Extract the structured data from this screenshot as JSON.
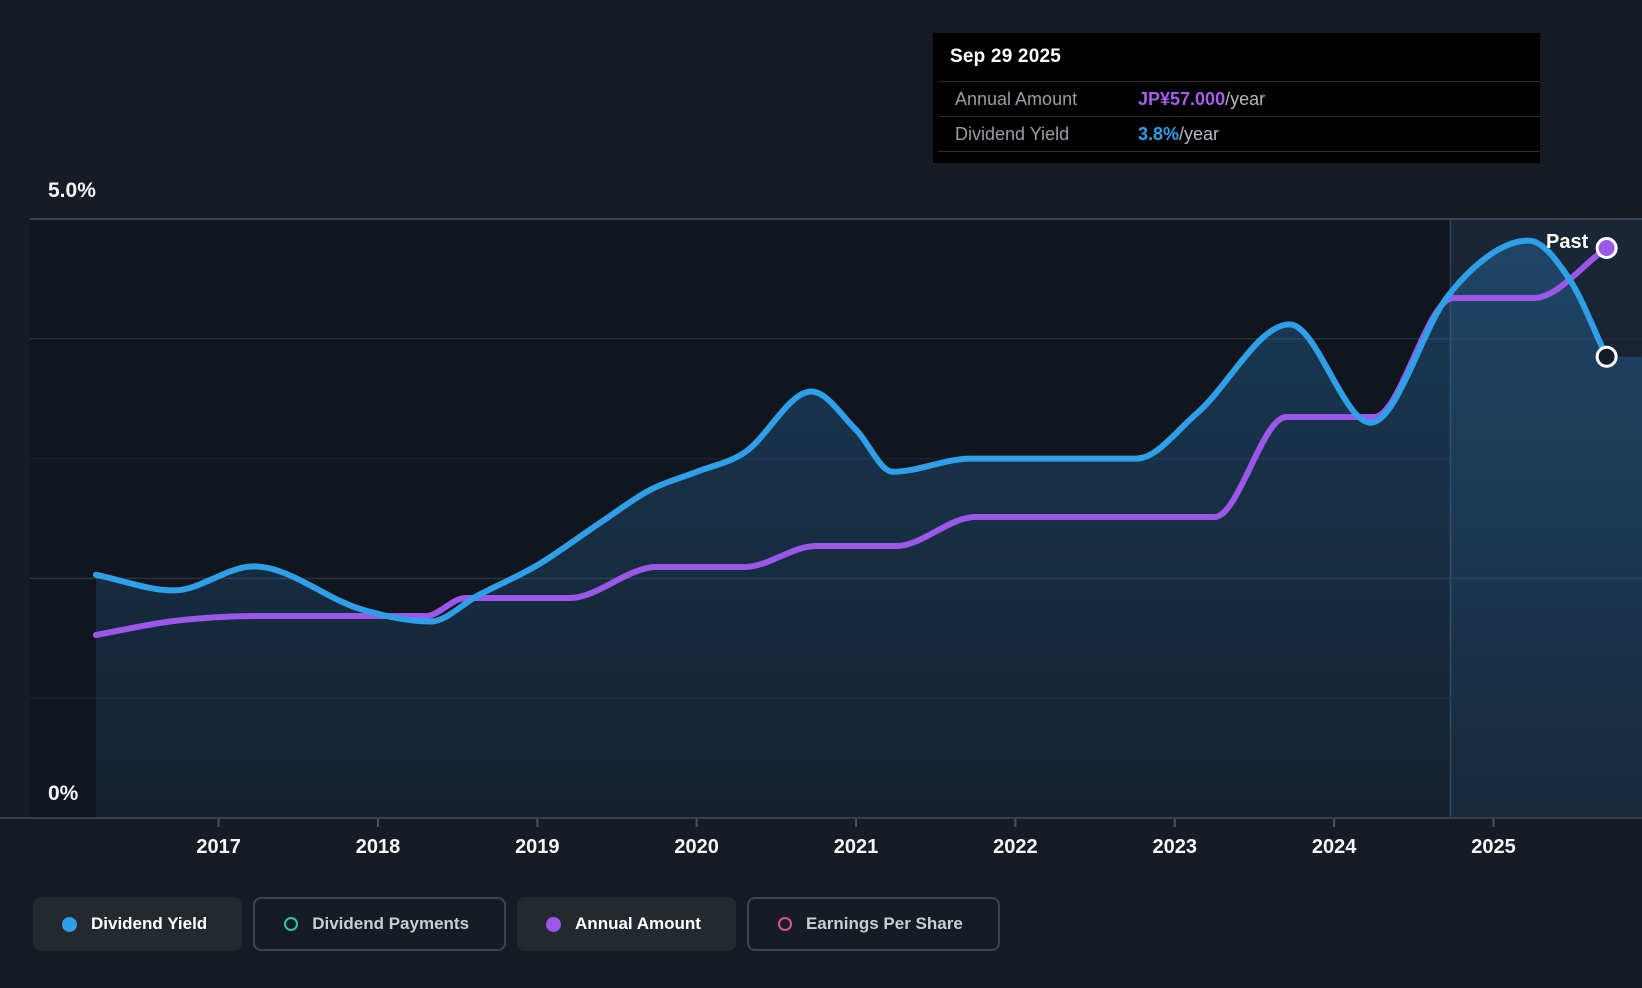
{
  "tooltip": {
    "date": "Sep 29 2025",
    "rows": [
      {
        "label": "Annual Amount",
        "value": "JP¥57.000",
        "suffix": "/year",
        "color": "#a55eea"
      },
      {
        "label": "Dividend Yield",
        "value": "3.8%",
        "suffix": "/year",
        "color": "#2f9fe8"
      }
    ]
  },
  "chart_data": {
    "type": "line",
    "title": "Dividend yield and payments history",
    "x_axis": {
      "tick_years": [
        "2017",
        "2018",
        "2019",
        "2020",
        "2021",
        "2022",
        "2023",
        "2024",
        "2025"
      ],
      "range_years": [
        2016.23,
        2025.75
      ]
    },
    "y_axis": {
      "label_top": "5.0%",
      "label_bottom": "0%",
      "range_pct": [
        0,
        5
      ],
      "gridlines_pct": [
        5,
        4,
        3,
        2,
        1
      ],
      "grid_on": true
    },
    "series": [
      {
        "name": "Dividend Yield",
        "unit": "percent_per_year",
        "color": "#2f9fe8",
        "end_marker": "hollow",
        "points": [
          [
            2016.23,
            2.03
          ],
          [
            2016.72,
            1.9
          ],
          [
            2017.22,
            2.1
          ],
          [
            2017.9,
            1.74
          ],
          [
            2018.33,
            1.64
          ],
          [
            2018.63,
            1.86
          ],
          [
            2019.0,
            2.11
          ],
          [
            2019.4,
            2.47
          ],
          [
            2019.71,
            2.74
          ],
          [
            2020.0,
            2.89
          ],
          [
            2020.3,
            3.05
          ],
          [
            2020.72,
            3.56
          ],
          [
            2021.0,
            3.24
          ],
          [
            2021.23,
            2.89
          ],
          [
            2021.72,
            3.0
          ],
          [
            2022.76,
            3.0
          ],
          [
            2023.14,
            3.38
          ],
          [
            2023.72,
            4.12
          ],
          [
            2024.23,
            3.3
          ],
          [
            2024.71,
            4.35
          ],
          [
            2025.0,
            4.72
          ],
          [
            2025.22,
            4.82
          ],
          [
            2025.48,
            4.49
          ],
          [
            2025.71,
            3.85
          ]
        ]
      },
      {
        "name": "Annual Amount",
        "unit": "JPY_per_year",
        "color": "#9b57e8",
        "end_marker": "filled",
        "points": [
          [
            2016.23,
            18.3
          ],
          [
            2016.72,
            19.7
          ],
          [
            2017.25,
            20.2
          ],
          [
            2018.3,
            20.2
          ],
          [
            2018.55,
            22.0
          ],
          [
            2019.2,
            22.0
          ],
          [
            2019.75,
            25.1
          ],
          [
            2020.3,
            25.1
          ],
          [
            2020.75,
            27.2
          ],
          [
            2021.25,
            27.2
          ],
          [
            2021.75,
            30.1
          ],
          [
            2023.25,
            30.1
          ],
          [
            2023.7,
            40.1
          ],
          [
            2024.25,
            40.1
          ],
          [
            2024.75,
            52.0
          ],
          [
            2025.25,
            52.0
          ],
          [
            2025.71,
            57.0
          ]
        ]
      }
    ],
    "annotations": {
      "past_label": "Past",
      "past_divider_year": 2024.73,
      "current_date": "Sep 29 2025",
      "current_dividend_yield_pct": 3.8,
      "current_annual_amount_jpy": 57
    },
    "legend_position": "bottom-left"
  },
  "legend": [
    {
      "label": "Dividend Yield",
      "marker": "dot",
      "color": "#2f9fe8",
      "active": true
    },
    {
      "label": "Dividend Payments",
      "marker": "ring",
      "color": "#2fc0b4",
      "active": false
    },
    {
      "label": "Annual Amount",
      "marker": "dot",
      "color": "#9b57e8",
      "active": true
    },
    {
      "label": "Earnings Per Share",
      "marker": "ring",
      "color": "#d9509c",
      "active": false
    }
  ],
  "colors": {
    "page_bg": "#171c24",
    "plot_bg": "#11161e",
    "grid_major": "#3a414b",
    "grid_minor": "#272e37",
    "axis_line": "#39404a",
    "past_zone_tint": "#4488c6",
    "text_primary": "#f4f6f8"
  }
}
